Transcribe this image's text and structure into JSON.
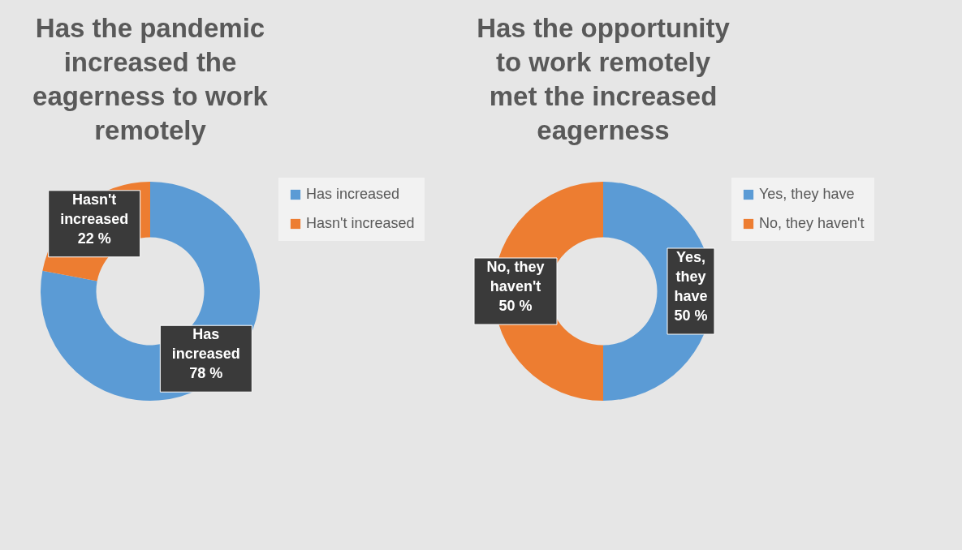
{
  "chart_data": [
    {
      "type": "donut",
      "title": "Has the pandemic increased the eagerness to work remotely",
      "categories": [
        "Has increased",
        "Hasn't increased"
      ],
      "values": [
        78,
        22
      ],
      "colors": [
        "#5b9bd5",
        "#ed7d31"
      ],
      "value_labels": [
        "78 %",
        "22 %"
      ],
      "legend": "right"
    },
    {
      "type": "donut",
      "title": "Has the opportunity to work remotely met the increased eagerness",
      "categories": [
        "Yes, they have",
        "No, they haven't"
      ],
      "values": [
        50,
        50
      ],
      "colors": [
        "#5b9bd5",
        "#ed7d31"
      ],
      "value_labels": [
        "50 %",
        "50 %"
      ],
      "legend": "right"
    }
  ]
}
